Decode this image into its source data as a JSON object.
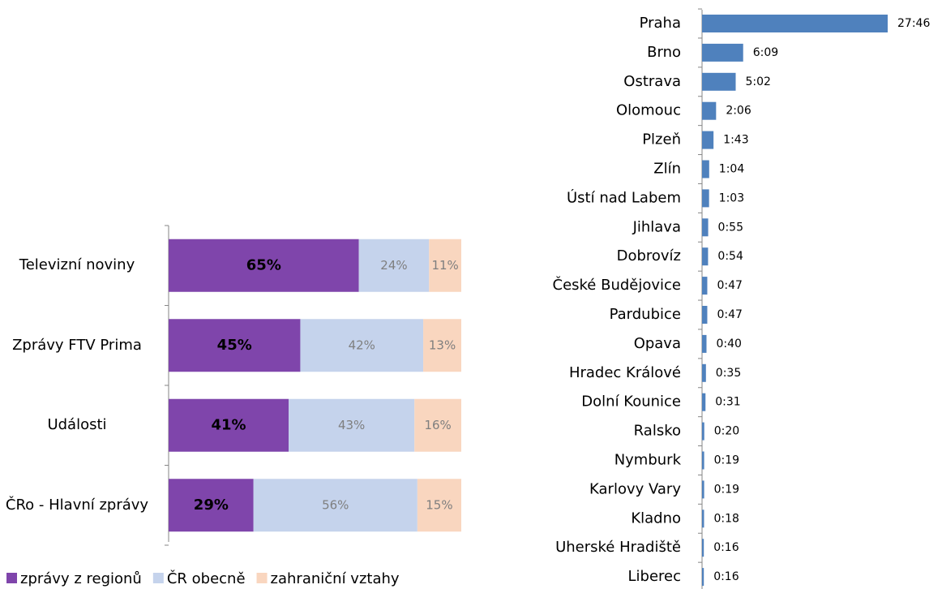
{
  "chart_data": [
    {
      "type": "stacked-bar",
      "categories": [
        "Televizní noviny",
        "Zprávy FTV Prima",
        "Události",
        "ČRo - Hlavní zprávy"
      ],
      "series": [
        {
          "name": "zprávy z regionů",
          "color": "#7f45ab",
          "values": [
            65,
            45,
            41,
            29
          ],
          "value_labels": [
            "65%",
            "45%",
            "41%",
            "29%"
          ]
        },
        {
          "name": "ČR obecně",
          "color": "#c5d3ec",
          "values": [
            24,
            42,
            43,
            56
          ],
          "value_labels": [
            "24%",
            "42%",
            "43%",
            "56%"
          ]
        },
        {
          "name": "zahraniční vztahy",
          "color": "#f9d6bf",
          "values": [
            11,
            13,
            16,
            15
          ],
          "value_labels": [
            "11%",
            "13%",
            "16%",
            "15%"
          ]
        }
      ],
      "xlim": [
        0,
        100
      ],
      "legend": "bottom"
    },
    {
      "type": "hbar",
      "categories": [
        "Praha",
        "Brno",
        "Ostrava",
        "Olomouc",
        "Plzeň",
        "Zlín",
        "Ústí nad Labem",
        "Jihlava",
        "Dobrovíz",
        "České Budějovice",
        "Pardubice",
        "Opava",
        "Hradec Králové",
        "Dolní Kounice",
        "Ralsko",
        "Nymburk",
        "Karlovy Vary",
        "Kladno",
        "Uherské Hradiště",
        "Liberec"
      ],
      "values": [
        1666,
        369,
        302,
        126,
        103,
        64,
        63,
        55,
        54,
        47,
        47,
        40,
        35,
        31,
        20,
        19,
        19,
        18,
        16,
        16
      ],
      "value_labels": [
        "27:46",
        "6:09",
        "5:02",
        "2:06",
        "1:43",
        "1:04",
        "1:03",
        "0:55",
        "0:54",
        "0:47",
        "0:47",
        "0:40",
        "0:35",
        "0:31",
        "0:20",
        "0:19",
        "0:19",
        "0:18",
        "0:16",
        "0:16"
      ],
      "color": "#4f81bd"
    }
  ]
}
